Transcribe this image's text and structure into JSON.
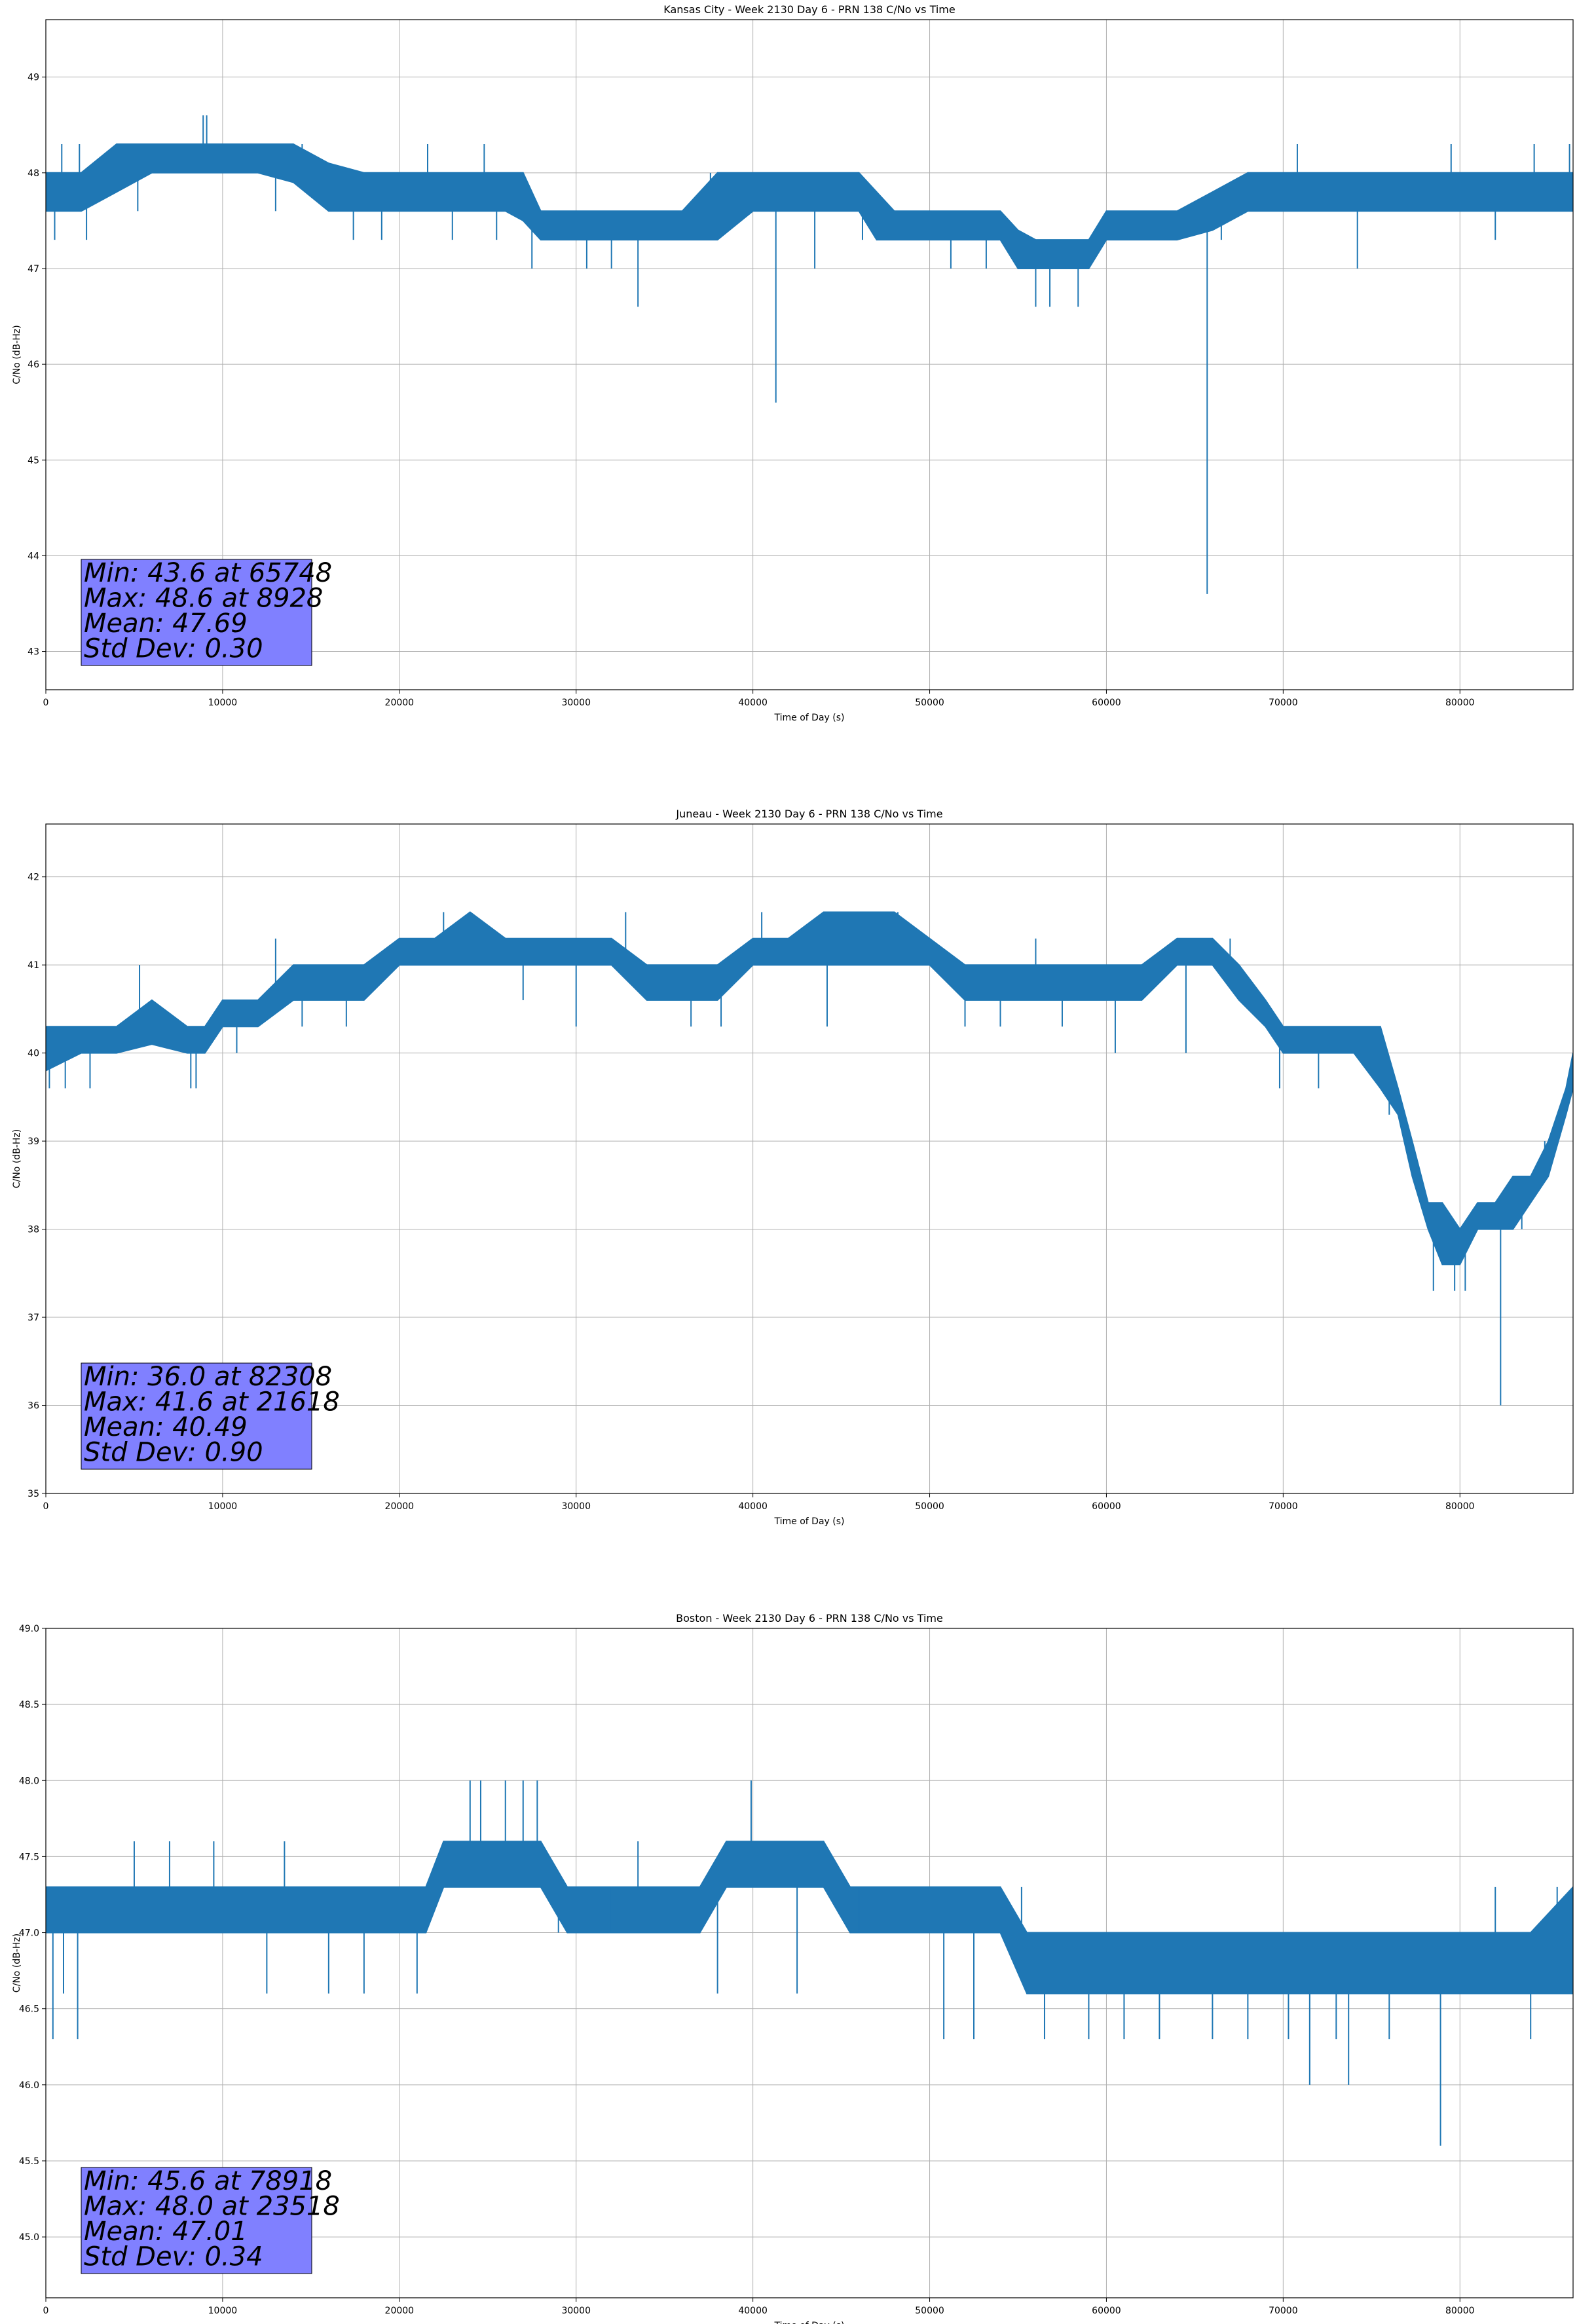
{
  "figure": {
    "background": "#ffffff",
    "line_color": "#1f77b4",
    "grid_color": "#b0b0b0",
    "stats_box_color": "#8080ff"
  },
  "chart_data": [
    {
      "type": "line",
      "title": "Kansas City - Week 2130 Day 6 - PRN 138 C/No vs Time",
      "xlabel": "Time of Day (s)",
      "ylabel": "C/No (dB-Hz)",
      "xlim": [
        0,
        86400
      ],
      "ylim": [
        42.6,
        49.6
      ],
      "xticks": [
        0,
        10000,
        20000,
        30000,
        40000,
        50000,
        60000,
        70000,
        80000
      ],
      "yticks": [
        43,
        44,
        45,
        46,
        47,
        48,
        49
      ],
      "ytick_labels": [
        "43",
        "44",
        "45",
        "46",
        "47",
        "48",
        "49"
      ],
      "grid": true,
      "band": [
        [
          0,
          47.6,
          48.0
        ],
        [
          2000,
          47.6,
          48.0
        ],
        [
          4000,
          47.8,
          48.3
        ],
        [
          6000,
          48.0,
          48.3
        ],
        [
          8000,
          48.0,
          48.3
        ],
        [
          10000,
          48.0,
          48.3
        ],
        [
          12000,
          48.0,
          48.3
        ],
        [
          14000,
          47.9,
          48.3
        ],
        [
          16000,
          47.6,
          48.1
        ],
        [
          18000,
          47.6,
          48.0
        ],
        [
          20000,
          47.6,
          48.0
        ],
        [
          22000,
          47.6,
          48.0
        ],
        [
          24000,
          47.6,
          48.0
        ],
        [
          26000,
          47.6,
          48.0
        ],
        [
          27000,
          47.5,
          48.0
        ],
        [
          28000,
          47.3,
          47.6
        ],
        [
          30000,
          47.3,
          47.6
        ],
        [
          32000,
          47.3,
          47.6
        ],
        [
          34000,
          47.3,
          47.6
        ],
        [
          36000,
          47.3,
          47.6
        ],
        [
          38000,
          47.3,
          48.0
        ],
        [
          40000,
          47.6,
          48.0
        ],
        [
          42000,
          47.6,
          48.0
        ],
        [
          44000,
          47.6,
          48.0
        ],
        [
          46000,
          47.6,
          48.0
        ],
        [
          47000,
          47.3,
          47.8
        ],
        [
          48000,
          47.3,
          47.6
        ],
        [
          50000,
          47.3,
          47.6
        ],
        [
          52000,
          47.3,
          47.6
        ],
        [
          54000,
          47.3,
          47.6
        ],
        [
          55000,
          47.0,
          47.4
        ],
        [
          56000,
          47.0,
          47.3
        ],
        [
          58000,
          47.0,
          47.3
        ],
        [
          59000,
          47.0,
          47.3
        ],
        [
          60000,
          47.3,
          47.6
        ],
        [
          62000,
          47.3,
          47.6
        ],
        [
          64000,
          47.3,
          47.6
        ],
        [
          66000,
          47.4,
          47.8
        ],
        [
          68000,
          47.6,
          48.0
        ],
        [
          70000,
          47.6,
          48.0
        ],
        [
          72000,
          47.6,
          48.0
        ],
        [
          74000,
          47.6,
          48.0
        ],
        [
          76000,
          47.6,
          48.0
        ],
        [
          78000,
          47.6,
          48.0
        ],
        [
          80000,
          47.6,
          48.0
        ],
        [
          82000,
          47.6,
          48.0
        ],
        [
          84000,
          47.6,
          48.0
        ],
        [
          86400,
          47.6,
          48.0
        ]
      ],
      "spikes": [
        [
          500,
          47.3
        ],
        [
          900,
          48.3
        ],
        [
          1900,
          48.3
        ],
        [
          2300,
          47.3
        ],
        [
          5200,
          47.6
        ],
        [
          8900,
          48.6
        ],
        [
          9100,
          48.6
        ],
        [
          13000,
          47.6
        ],
        [
          14500,
          48.3
        ],
        [
          17400,
          47.3
        ],
        [
          19000,
          47.3
        ],
        [
          21600,
          48.3
        ],
        [
          23000,
          47.3
        ],
        [
          24800,
          48.3
        ],
        [
          25500,
          47.3
        ],
        [
          27500,
          47.0
        ],
        [
          30600,
          47.0
        ],
        [
          32000,
          47.0
        ],
        [
          33500,
          46.6
        ],
        [
          37600,
          48.0
        ],
        [
          41300,
          45.6
        ],
        [
          43500,
          47.0
        ],
        [
          46200,
          47.3
        ],
        [
          51200,
          47.0
        ],
        [
          53200,
          47.0
        ],
        [
          55000,
          47.0
        ],
        [
          56000,
          46.6
        ],
        [
          56800,
          46.6
        ],
        [
          58400,
          46.6
        ],
        [
          61500,
          47.6
        ],
        [
          65700,
          43.6
        ],
        [
          66500,
          47.3
        ],
        [
          70800,
          48.3
        ],
        [
          74200,
          47.0
        ],
        [
          79500,
          48.3
        ],
        [
          82000,
          47.3
        ],
        [
          84200,
          48.3
        ],
        [
          86200,
          48.3
        ]
      ],
      "stats_box": {
        "lines": [
          "Min: 43.6 at 65748",
          "Max: 48.6 at 8928",
          "Mean: 47.69",
          "Std Dev: 0.30"
        ]
      }
    },
    {
      "type": "line",
      "title": "Juneau - Week 2130 Day 6 - PRN 138 C/No vs Time",
      "xlabel": "Time of Day (s)",
      "ylabel": "C/No (dB-Hz)",
      "xlim": [
        0,
        86400
      ],
      "ylim": [
        35.0,
        42.6
      ],
      "xticks": [
        0,
        10000,
        20000,
        30000,
        40000,
        50000,
        60000,
        70000,
        80000
      ],
      "yticks": [
        35,
        36,
        37,
        38,
        39,
        40,
        41,
        42
      ],
      "ytick_labels": [
        "35",
        "36",
        "37",
        "38",
        "39",
        "40",
        "41",
        "42"
      ],
      "grid": true,
      "band": [
        [
          0,
          39.8,
          40.3
        ],
        [
          2000,
          40.0,
          40.3
        ],
        [
          4000,
          40.0,
          40.3
        ],
        [
          6000,
          40.1,
          40.6
        ],
        [
          8000,
          40.0,
          40.3
        ],
        [
          9000,
          40.0,
          40.3
        ],
        [
          10000,
          40.3,
          40.6
        ],
        [
          12000,
          40.3,
          40.6
        ],
        [
          14000,
          40.6,
          41.0
        ],
        [
          16000,
          40.6,
          41.0
        ],
        [
          18000,
          40.6,
          41.0
        ],
        [
          20000,
          41.0,
          41.3
        ],
        [
          22000,
          41.0,
          41.3
        ],
        [
          24000,
          41.0,
          41.6
        ],
        [
          26000,
          41.0,
          41.3
        ],
        [
          28000,
          41.0,
          41.3
        ],
        [
          30000,
          41.0,
          41.3
        ],
        [
          32000,
          41.0,
          41.3
        ],
        [
          34000,
          40.6,
          41.0
        ],
        [
          36000,
          40.6,
          41.0
        ],
        [
          38000,
          40.6,
          41.0
        ],
        [
          40000,
          41.0,
          41.3
        ],
        [
          42000,
          41.0,
          41.3
        ],
        [
          44000,
          41.0,
          41.6
        ],
        [
          46000,
          41.0,
          41.6
        ],
        [
          48000,
          41.0,
          41.6
        ],
        [
          50000,
          41.0,
          41.3
        ],
        [
          52000,
          40.6,
          41.0
        ],
        [
          54000,
          40.6,
          41.0
        ],
        [
          56000,
          40.6,
          41.0
        ],
        [
          58000,
          40.6,
          41.0
        ],
        [
          60000,
          40.6,
          41.0
        ],
        [
          62000,
          40.6,
          41.0
        ],
        [
          64000,
          41.0,
          41.3
        ],
        [
          66000,
          41.0,
          41.3
        ],
        [
          67500,
          40.6,
          41.0
        ],
        [
          69000,
          40.3,
          40.6
        ],
        [
          70000,
          40.0,
          40.3
        ],
        [
          72000,
          40.0,
          40.3
        ],
        [
          74000,
          40.0,
          40.3
        ],
        [
          75500,
          39.6,
          40.3
        ],
        [
          76500,
          39.3,
          39.6
        ],
        [
          77300,
          38.6,
          39.0
        ],
        [
          78200,
          38.0,
          38.3
        ],
        [
          79000,
          37.6,
          38.3
        ],
        [
          80000,
          37.6,
          38.0
        ],
        [
          81000,
          38.0,
          38.3
        ],
        [
          82000,
          38.0,
          38.3
        ],
        [
          83000,
          38.0,
          38.6
        ],
        [
          84000,
          38.3,
          38.6
        ],
        [
          85000,
          38.6,
          39.0
        ],
        [
          86000,
          39.3,
          39.6
        ],
        [
          86400,
          39.6,
          40.0
        ]
      ],
      "spikes": [
        [
          200,
          39.6
        ],
        [
          1100,
          39.6
        ],
        [
          2500,
          39.6
        ],
        [
          5300,
          41.0
        ],
        [
          8200,
          39.6
        ],
        [
          8500,
          39.6
        ],
        [
          10800,
          40.0
        ],
        [
          13000,
          41.3
        ],
        [
          14500,
          40.3
        ],
        [
          17000,
          40.3
        ],
        [
          22500,
          41.6
        ],
        [
          27000,
          40.6
        ],
        [
          30000,
          40.3
        ],
        [
          32800,
          41.6
        ],
        [
          36500,
          40.3
        ],
        [
          38200,
          40.3
        ],
        [
          40500,
          41.6
        ],
        [
          44200,
          40.3
        ],
        [
          48200,
          41.6
        ],
        [
          52000,
          40.3
        ],
        [
          54000,
          40.3
        ],
        [
          56000,
          41.3
        ],
        [
          57500,
          40.3
        ],
        [
          60500,
          40.0
        ],
        [
          64500,
          40.0
        ],
        [
          67000,
          41.3
        ],
        [
          69800,
          39.6
        ],
        [
          72000,
          39.6
        ],
        [
          76000,
          39.3
        ],
        [
          78500,
          37.3
        ],
        [
          79700,
          37.3
        ],
        [
          80300,
          37.3
        ],
        [
          82300,
          36.0
        ],
        [
          83500,
          38.0
        ],
        [
          84800,
          39.0
        ]
      ],
      "stats_box": {
        "lines": [
          "Min: 36.0 at 82308",
          "Max: 41.6 at 21618",
          "Mean: 40.49",
          "Std Dev: 0.90"
        ]
      }
    },
    {
      "type": "line",
      "title": "Boston - Week 2130 Day 6 - PRN 138 C/No vs Time",
      "xlabel": "Time of Day (s)",
      "ylabel": "C/No (dB-Hz)",
      "xlim": [
        0,
        86400
      ],
      "ylim": [
        44.6,
        49.0
      ],
      "xticks": [
        0,
        10000,
        20000,
        30000,
        40000,
        50000,
        60000,
        70000,
        80000
      ],
      "yticks": [
        45.0,
        45.5,
        46.0,
        46.5,
        47.0,
        47.5,
        48.0,
        48.5,
        49.0
      ],
      "ytick_labels": [
        "45.0",
        "45.5",
        "46.0",
        "46.5",
        "47.0",
        "47.5",
        "48.0",
        "48.5",
        "49.0"
      ],
      "grid": true,
      "band": [
        [
          0,
          47.0,
          47.3
        ],
        [
          2000,
          47.0,
          47.3
        ],
        [
          4000,
          47.0,
          47.3
        ],
        [
          6000,
          47.0,
          47.3
        ],
        [
          8000,
          47.0,
          47.3
        ],
        [
          10000,
          47.0,
          47.3
        ],
        [
          12000,
          47.0,
          47.3
        ],
        [
          14000,
          47.0,
          47.3
        ],
        [
          16000,
          47.0,
          47.3
        ],
        [
          18000,
          47.0,
          47.3
        ],
        [
          20000,
          47.0,
          47.3
        ],
        [
          21500,
          47.0,
          47.3
        ],
        [
          22500,
          47.3,
          47.6
        ],
        [
          24000,
          47.3,
          47.6
        ],
        [
          26000,
          47.3,
          47.6
        ],
        [
          28000,
          47.3,
          47.6
        ],
        [
          29500,
          47.0,
          47.3
        ],
        [
          31000,
          47.0,
          47.3
        ],
        [
          33000,
          47.0,
          47.3
        ],
        [
          35000,
          47.0,
          47.3
        ],
        [
          37000,
          47.0,
          47.3
        ],
        [
          38500,
          47.3,
          47.6
        ],
        [
          40000,
          47.3,
          47.6
        ],
        [
          42000,
          47.3,
          47.6
        ],
        [
          44000,
          47.3,
          47.6
        ],
        [
          45500,
          47.0,
          47.3
        ],
        [
          48000,
          47.0,
          47.3
        ],
        [
          50000,
          47.0,
          47.3
        ],
        [
          52000,
          47.0,
          47.3
        ],
        [
          54000,
          47.0,
          47.3
        ],
        [
          55500,
          46.6,
          47.0
        ],
        [
          56000,
          46.6,
          47.0
        ],
        [
          58000,
          46.6,
          47.0
        ],
        [
          60000,
          46.6,
          47.0
        ],
        [
          62000,
          46.6,
          47.0
        ],
        [
          64000,
          46.6,
          47.0
        ],
        [
          66000,
          46.6,
          47.0
        ],
        [
          68000,
          46.6,
          47.0
        ],
        [
          70000,
          46.6,
          47.0
        ],
        [
          72000,
          46.6,
          47.0
        ],
        [
          74000,
          46.6,
          47.0
        ],
        [
          76000,
          46.6,
          47.0
        ],
        [
          78000,
          46.6,
          47.0
        ],
        [
          80000,
          46.6,
          47.0
        ],
        [
          82000,
          46.6,
          47.0
        ],
        [
          84000,
          46.6,
          47.0
        ],
        [
          86400,
          46.6,
          47.3
        ]
      ],
      "spikes": [
        [
          400,
          46.3
        ],
        [
          1000,
          46.6
        ],
        [
          1800,
          46.3
        ],
        [
          5000,
          47.6
        ],
        [
          7000,
          47.6
        ],
        [
          9500,
          47.6
        ],
        [
          12500,
          46.6
        ],
        [
          13500,
          47.6
        ],
        [
          16000,
          46.6
        ],
        [
          18000,
          46.6
        ],
        [
          21000,
          46.6
        ],
        [
          24000,
          48.0
        ],
        [
          24600,
          48.0
        ],
        [
          26000,
          48.0
        ],
        [
          27000,
          48.0
        ],
        [
          27800,
          48.0
        ],
        [
          29000,
          47.0
        ],
        [
          32000,
          47.0
        ],
        [
          33500,
          47.6
        ],
        [
          35000,
          47.0
        ],
        [
          38000,
          46.6
        ],
        [
          39900,
          48.0
        ],
        [
          42500,
          46.6
        ],
        [
          46000,
          47.0
        ],
        [
          49500,
          47.3
        ],
        [
          50800,
          46.3
        ],
        [
          52500,
          46.3
        ],
        [
          55200,
          47.3
        ],
        [
          56500,
          46.3
        ],
        [
          59000,
          46.3
        ],
        [
          61000,
          46.3
        ],
        [
          63000,
          46.3
        ],
        [
          66000,
          46.3
        ],
        [
          68000,
          46.3
        ],
        [
          70300,
          46.3
        ],
        [
          71500,
          46.0
        ],
        [
          73000,
          46.3
        ],
        [
          73700,
          46.0
        ],
        [
          76000,
          46.3
        ],
        [
          78900,
          45.6
        ],
        [
          82000,
          47.3
        ],
        [
          84000,
          46.3
        ],
        [
          85500,
          47.3
        ]
      ],
      "stats_box": {
        "lines": [
          "Min: 45.6 at 78918",
          "Max: 48.0 at 23518",
          "Mean: 47.01",
          "Std Dev: 0.34"
        ]
      }
    }
  ]
}
